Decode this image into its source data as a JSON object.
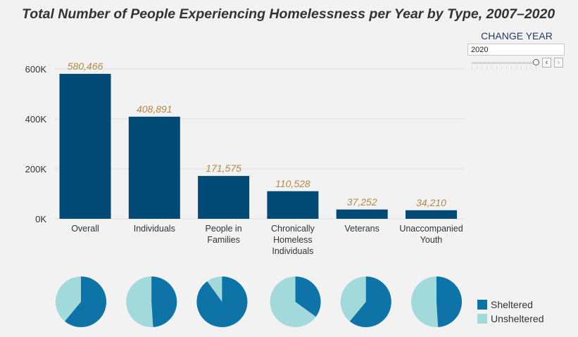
{
  "title": "Total Number of People Experiencing Homelessness per Year by Type, 2007–2020",
  "controls": {
    "change_year_label": "CHANGE YEAR",
    "selected_year": "2020",
    "prev_icon": "chevron-left-icon",
    "next_icon": "chevron-right-icon"
  },
  "legend": {
    "items": [
      {
        "label": "Sheltered",
        "color": "#0e73a6"
      },
      {
        "label": "Unsheltered",
        "color": "#a2d9db"
      }
    ]
  },
  "chart_data": [
    {
      "type": "bar",
      "categories": [
        [
          "Overall"
        ],
        [
          "Individuals"
        ],
        [
          "People in",
          "Families"
        ],
        [
          "Chronically",
          "Homeless",
          "Individuals"
        ],
        [
          "Veterans"
        ],
        [
          "Unaccompanied",
          "Youth"
        ]
      ],
      "values": [
        580466,
        408891,
        171575,
        110528,
        37252,
        34210
      ],
      "data_labels": [
        "580,466",
        "408,891",
        "171,575",
        "110,528",
        "37,252",
        "34,210"
      ],
      "yticks": [
        {
          "value": 0,
          "label": "0K"
        },
        {
          "value": 200000,
          "label": "200K"
        },
        {
          "value": 400000,
          "label": "400K"
        },
        {
          "value": 600000,
          "label": "600K"
        }
      ],
      "ylim": [
        0,
        600000
      ],
      "bar_color": "#004a75",
      "label_color": "#b5884a",
      "grid": true
    },
    {
      "type": "pie",
      "categories": [
        "Overall",
        "Individuals",
        "People in Families",
        "Chronically Homeless Individuals",
        "Veterans",
        "Unaccompanied Youth"
      ],
      "series": [
        {
          "name": "Sheltered",
          "values": [
            0.61,
            0.49,
            0.9,
            0.35,
            0.61,
            0.49
          ]
        },
        {
          "name": "Unsheltered",
          "values": [
            0.39,
            0.51,
            0.1,
            0.65,
            0.39,
            0.51
          ]
        }
      ],
      "colors": [
        "#0e73a6",
        "#a2d9db"
      ]
    }
  ]
}
